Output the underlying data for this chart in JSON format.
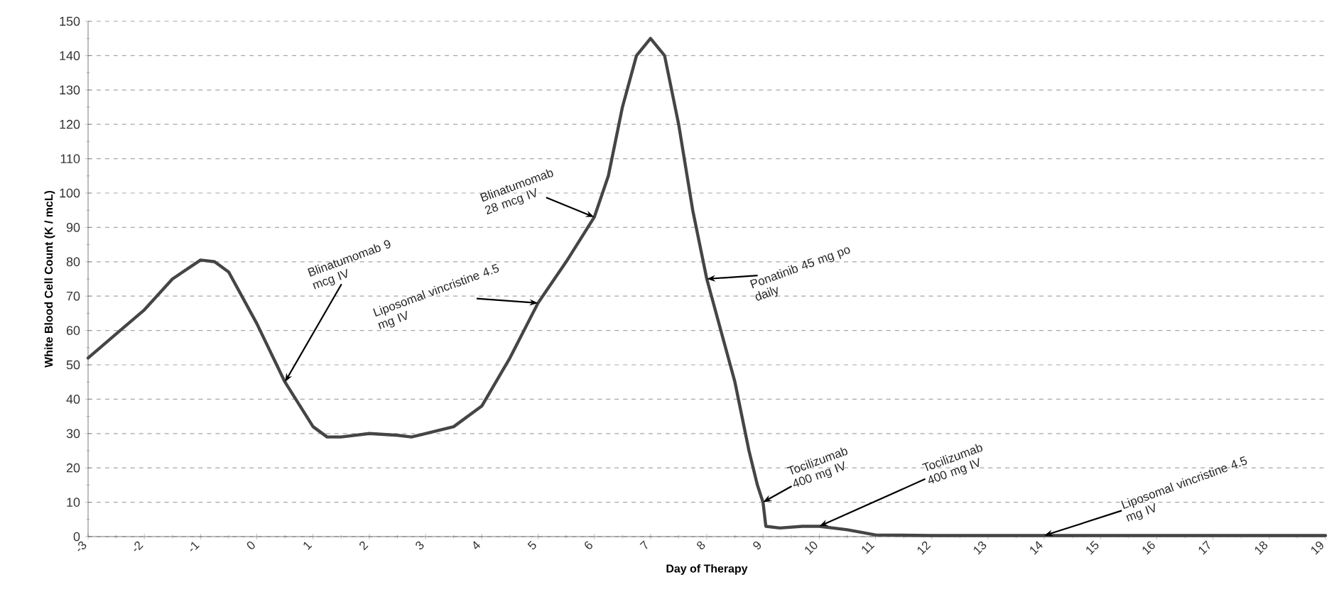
{
  "chart_data": {
    "type": "line",
    "xlabel": "Day of Therapy",
    "ylabel": "White Blood Cell Count (K / mcL)",
    "x": [
      -3,
      -2.5,
      -2,
      -1.5,
      -1,
      -0.75,
      -0.5,
      0,
      0.5,
      1,
      1.25,
      1.5,
      2,
      2.5,
      2.75,
      3,
      3.5,
      4,
      4.5,
      5,
      5.5,
      6,
      6.25,
      6.5,
      6.75,
      7,
      7.25,
      7.5,
      7.75,
      8,
      8.5,
      8.75,
      8.9,
      9,
      9.05,
      9.3,
      9.7,
      10,
      10.5,
      11,
      12,
      13,
      14,
      15,
      16,
      17,
      18,
      19
    ],
    "series": [
      {
        "color": "#454545",
        "values": [
          52,
          59,
          66,
          75,
          80.5,
          80,
          77,
          62,
          45,
          32,
          29,
          29,
          30,
          29.5,
          29,
          30,
          32,
          38,
          52,
          68,
          80,
          93,
          105,
          125,
          140,
          145,
          140,
          120,
          95,
          75,
          45,
          25,
          15,
          10,
          3,
          2.5,
          3,
          3,
          2,
          0.5,
          0.3,
          0.3,
          0.3,
          0.3,
          0.3,
          0.3,
          0.3,
          0.3
        ]
      }
    ],
    "xlim": [
      -3,
      19
    ],
    "xticks": [
      -3,
      -2,
      -1,
      0,
      1,
      2,
      3,
      4,
      5,
      6,
      7,
      8,
      9,
      10,
      11,
      12,
      13,
      14,
      15,
      16,
      17,
      18,
      19
    ],
    "ylim": [
      0,
      150
    ],
    "yticks": [
      0,
      10,
      20,
      30,
      40,
      50,
      60,
      70,
      80,
      90,
      100,
      110,
      120,
      130,
      140,
      150
    ],
    "grid": "y",
    "marker": "none",
    "line_style": "solid",
    "legend": false,
    "annotations": [
      {
        "text": "Blinatumomab 9 mcg IV",
        "x": 0.5,
        "y": 45
      },
      {
        "text": "Liposomal vincristine 4.5 mg IV",
        "x": 5,
        "y": 68
      },
      {
        "text": "Blinatumomab 28 mcg IV",
        "x": 6,
        "y": 93
      },
      {
        "text": "Ponatinib 45 mg po daily",
        "x": 8,
        "y": 75
      },
      {
        "text": "Tocilizumab 400 mg IV",
        "x": 9,
        "y": 10
      },
      {
        "text": "Tocilizumab 400 mg IV",
        "x": 10,
        "y": 3
      },
      {
        "text": "Liposomal vincristine 4.5 mg IV",
        "x": 14,
        "y": 0.3
      }
    ]
  }
}
